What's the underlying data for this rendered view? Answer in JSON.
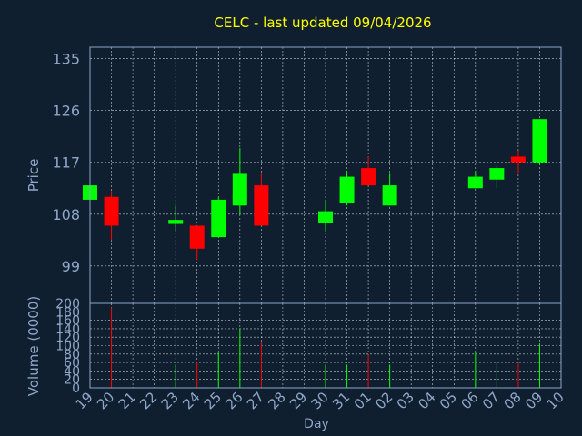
{
  "chart_data": {
    "type": "candlestick",
    "title": "CELC - last updated 09/04/2026",
    "xlabel": "Day",
    "x_tick_labels": [
      "19",
      "20",
      "21",
      "22",
      "23",
      "24",
      "25",
      "26",
      "27",
      "28",
      "29",
      "30",
      "31",
      "01",
      "02",
      "03",
      "04",
      "05",
      "06",
      "07",
      "08",
      "09",
      "10"
    ],
    "price": {
      "ylabel": "Price",
      "ylim": [
        92.5,
        137
      ],
      "yticks": [
        99,
        108,
        117,
        126,
        135
      ],
      "candles": [
        {
          "day": "19",
          "open": 110.5,
          "close": 113.0,
          "high": 113.0,
          "low": 110.5
        },
        {
          "day": "20",
          "open": 111.0,
          "close": 106.0,
          "high": 112.0,
          "low": 103.5
        },
        {
          "day": "23",
          "open": 106.3,
          "close": 107.0,
          "high": 109.5,
          "low": 105.0
        },
        {
          "day": "24",
          "open": 106.0,
          "close": 102.0,
          "high": 106.0,
          "low": 100.0
        },
        {
          "day": "25",
          "open": 104.0,
          "close": 110.5,
          "high": 111.0,
          "low": 104.0
        },
        {
          "day": "26",
          "open": 109.5,
          "close": 115.0,
          "high": 119.5,
          "low": 108.0
        },
        {
          "day": "27",
          "open": 113.0,
          "close": 106.0,
          "high": 115.0,
          "low": 106.0
        },
        {
          "day": "30",
          "open": 106.5,
          "close": 108.5,
          "high": 110.5,
          "low": 105.0
        },
        {
          "day": "31",
          "open": 110.0,
          "close": 114.5,
          "high": 115.5,
          "low": 109.5
        },
        {
          "day": "01",
          "open": 116.0,
          "close": 113.0,
          "high": 118.0,
          "low": 113.0
        },
        {
          "day": "02",
          "open": 109.5,
          "close": 113.0,
          "high": 115.0,
          "low": 109.5
        },
        {
          "day": "06",
          "open": 112.5,
          "close": 114.5,
          "high": 115.5,
          "low": 112.5
        },
        {
          "day": "07",
          "open": 114.0,
          "close": 116.0,
          "high": 116.5,
          "low": 112.5
        },
        {
          "day": "08",
          "open": 118.0,
          "close": 117.0,
          "high": 119.0,
          "low": 115.0
        },
        {
          "day": "09",
          "open": 117.0,
          "close": 124.5,
          "high": 124.5,
          "low": 116.5
        }
      ]
    },
    "volume": {
      "ylabel": "Volume (0000)",
      "ylim": [
        0,
        200
      ],
      "yticks": [
        0,
        20,
        40,
        60,
        80,
        100,
        120,
        140,
        160,
        180,
        200
      ],
      "bars": [
        {
          "day": "20",
          "value": 190,
          "up": false
        },
        {
          "day": "23",
          "value": 55,
          "up": true
        },
        {
          "day": "24",
          "value": 60,
          "up": false
        },
        {
          "day": "25",
          "value": 85,
          "up": true
        },
        {
          "day": "26",
          "value": 140,
          "up": true
        },
        {
          "day": "27",
          "value": 110,
          "up": false
        },
        {
          "day": "30",
          "value": 55,
          "up": true
        },
        {
          "day": "31",
          "value": 55,
          "up": true
        },
        {
          "day": "01",
          "value": 78,
          "up": false
        },
        {
          "day": "02",
          "value": 55,
          "up": true
        },
        {
          "day": "06",
          "value": 85,
          "up": true
        },
        {
          "day": "07",
          "value": 62,
          "up": true
        },
        {
          "day": "08",
          "value": 58,
          "up": false
        },
        {
          "day": "09",
          "value": 105,
          "up": true
        }
      ]
    },
    "grid": true,
    "colors": {
      "background": "#0f1f30",
      "title": "#ffff00",
      "axis_text": "#8fa6c8",
      "up": "#00ff00",
      "down": "#ff0000",
      "grid": "#ffffff"
    }
  }
}
